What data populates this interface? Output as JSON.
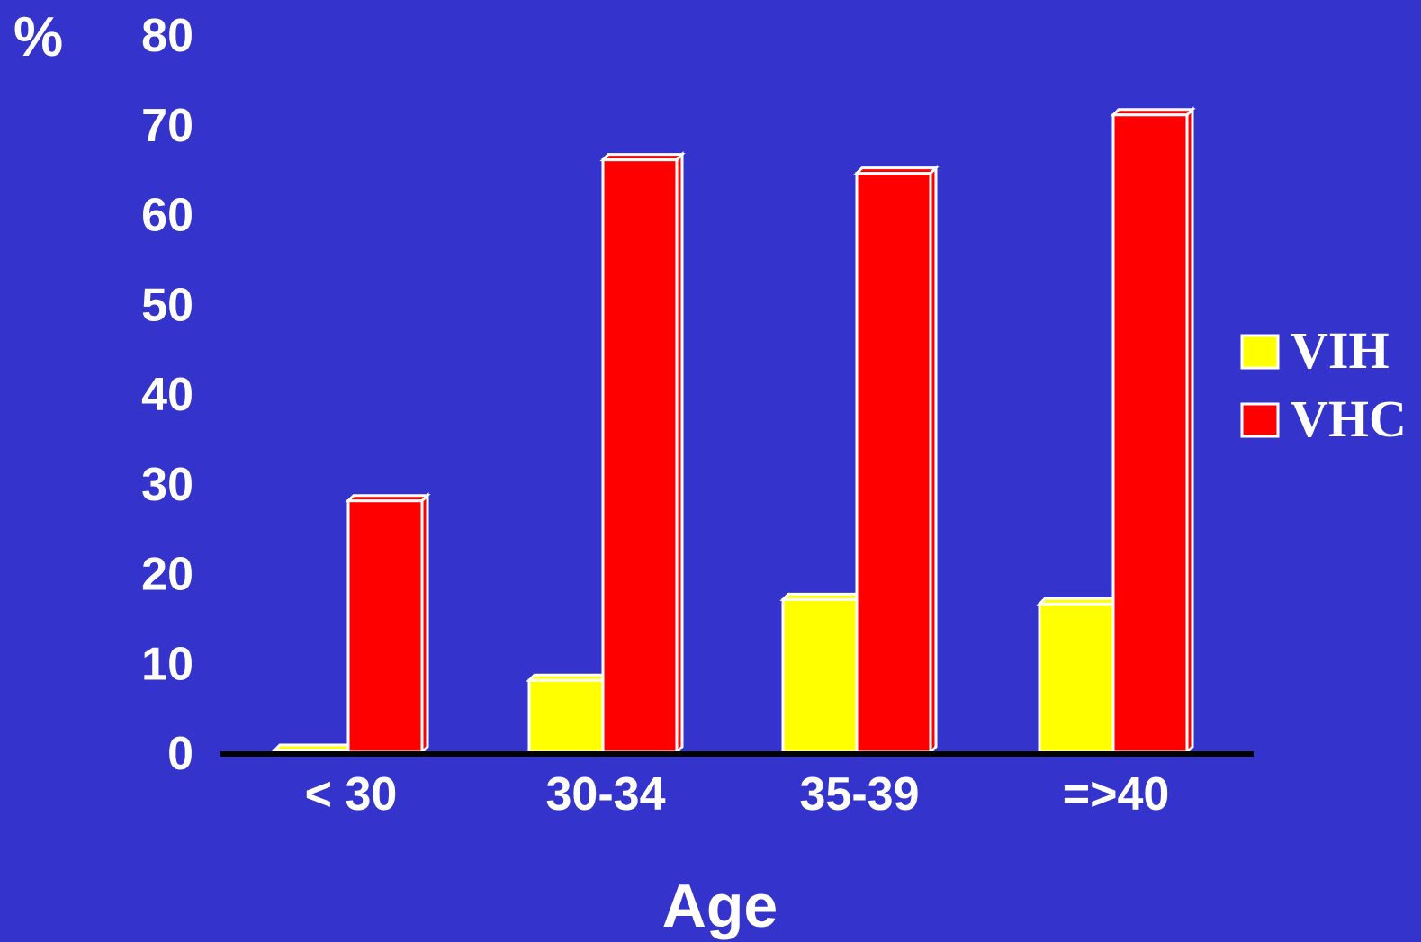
{
  "chart_data": {
    "type": "bar",
    "title": "",
    "xlabel": "Age",
    "ylabel": "%",
    "ylim": [
      0,
      80
    ],
    "yticks": [
      "0",
      "10",
      "20",
      "30",
      "40",
      "50",
      "60",
      "70",
      "80"
    ],
    "categories": [
      "< 30",
      "30-34",
      "35-39",
      "=>40"
    ],
    "series": [
      {
        "name": "VIH",
        "color": "#ffff00",
        "values": [
          0,
          8,
          17,
          16.5
        ]
      },
      {
        "name": "VHC",
        "color": "#ff0000",
        "values": [
          28,
          66,
          64.5,
          71
        ]
      }
    ],
    "grid": false,
    "legend": "right",
    "background": "#3434cc"
  }
}
